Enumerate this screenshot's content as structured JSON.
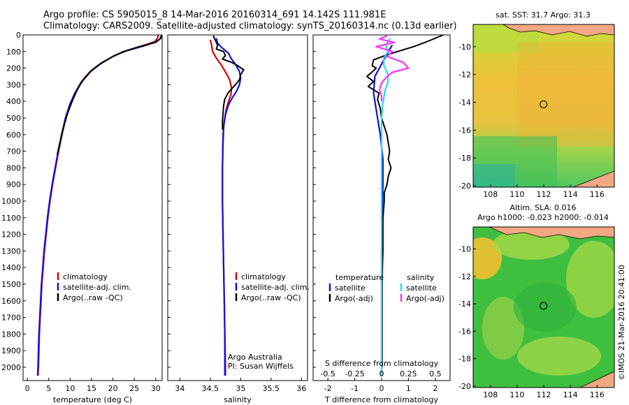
{
  "header": {
    "line1": "Argo profile: CS 5905015_8 14-Mar-2016 20160314_691 14.142S 111.981E",
    "line2": "Climatology: CARS2009. Satellite-adjusted climatology: synTS_20160314.nc (0.13d earlier)"
  },
  "side_text": "©IMOS 21-Mar-2016 20:41:00",
  "colors": {
    "climatology": "#e00000",
    "satellite": "#1010e0",
    "argo": "#000000",
    "s_satellite": "#20e0e8",
    "s_argo": "#ff30ff",
    "land": "#f2a882",
    "coast": "#000000"
  },
  "chart_data": [
    {
      "id": "temperature",
      "type": "line",
      "xlabel": "temperature (deg C)",
      "xlim": [
        -1,
        31.5
      ],
      "ylim": [
        2080,
        0
      ],
      "xticks": [
        "0",
        "5",
        "10",
        "15",
        "20",
        "25",
        "30"
      ],
      "yticks": [
        "0",
        "100",
        "200",
        "300",
        "400",
        "500",
        "600",
        "700",
        "800",
        "900",
        "1000",
        "1100",
        "1200",
        "1300",
        "1400",
        "1500",
        "1600",
        "1700",
        "1800",
        "1900",
        "2000"
      ],
      "legend": [
        "climatology",
        "satellite-adj. clim.",
        "Argo(..raw -QC)"
      ],
      "series": [
        {
          "name": "climatology",
          "color_key": "climatology",
          "points": [
            [
              30.6,
              0
            ],
            [
              30.4,
              20
            ],
            [
              29.8,
              40
            ],
            [
              27.5,
              60
            ],
            [
              25.0,
              80
            ],
            [
              22.5,
              100
            ],
            [
              20.0,
              130
            ],
            [
              17.3,
              170
            ],
            [
              14.8,
              220
            ],
            [
              12.8,
              280
            ],
            [
              11.2,
              350
            ],
            [
              10.0,
              420
            ],
            [
              9.0,
              500
            ],
            [
              8.1,
              600
            ],
            [
              7.3,
              700
            ],
            [
              6.6,
              800
            ],
            [
              5.9,
              900
            ],
            [
              5.3,
              1000
            ],
            [
              4.8,
              1100
            ],
            [
              4.4,
              1200
            ],
            [
              4.0,
              1300
            ],
            [
              3.7,
              1400
            ],
            [
              3.4,
              1500
            ],
            [
              3.2,
              1600
            ],
            [
              3.0,
              1700
            ],
            [
              2.8,
              1800
            ],
            [
              2.7,
              1900
            ],
            [
              2.6,
              2000
            ],
            [
              2.5,
              2050
            ]
          ]
        },
        {
          "name": "satellite-adj. clim.",
          "color_key": "satellite",
          "points": [
            [
              31.5,
              0
            ],
            [
              31.2,
              20
            ],
            [
              30.2,
              40
            ],
            [
              28.0,
              60
            ],
            [
              25.4,
              80
            ],
            [
              22.6,
              100
            ],
            [
              20.0,
              130
            ],
            [
              17.2,
              170
            ],
            [
              14.7,
              220
            ],
            [
              12.7,
              280
            ],
            [
              11.1,
              350
            ],
            [
              9.9,
              420
            ],
            [
              8.9,
              500
            ],
            [
              8.0,
              600
            ],
            [
              7.2,
              700
            ],
            [
              6.5,
              800
            ],
            [
              5.8,
              900
            ],
            [
              5.2,
              1000
            ],
            [
              4.7,
              1100
            ],
            [
              4.3,
              1200
            ],
            [
              3.9,
              1300
            ],
            [
              3.6,
              1400
            ],
            [
              3.3,
              1500
            ],
            [
              3.1,
              1600
            ],
            [
              2.9,
              1700
            ],
            [
              2.7,
              1800
            ],
            [
              2.6,
              1900
            ],
            [
              2.5,
              2000
            ],
            [
              2.4,
              2050
            ]
          ]
        },
        {
          "name": "Argo(..raw -QC)",
          "color_key": "argo",
          "points": [
            [
              31.3,
              5
            ],
            [
              31.0,
              25
            ],
            [
              30.0,
              45
            ],
            [
              27.8,
              60
            ],
            [
              25.6,
              75
            ],
            [
              23.2,
              95
            ],
            [
              20.3,
              125
            ],
            [
              17.6,
              165
            ],
            [
              15.4,
              205
            ],
            [
              13.5,
              255
            ],
            [
              12.3,
              300
            ],
            [
              11.4,
              345
            ],
            [
              10.3,
              410
            ],
            [
              9.3,
              480
            ],
            [
              8.4,
              560
            ],
            [
              7.6,
              650
            ],
            [
              7.0,
              720
            ]
          ]
        }
      ]
    },
    {
      "id": "salinity",
      "type": "line",
      "xlabel": "salinity",
      "xlim": [
        33.8,
        36.1
      ],
      "ylim": [
        2080,
        0
      ],
      "xticks": [
        "34",
        "34.5",
        "35",
        "35.5",
        "36"
      ],
      "legend": [
        "climatology",
        "satellite-adj. clim.",
        "Argo(..raw -QC)"
      ],
      "annotation": [
        "Argo Australia",
        "PI: Susan Wijffels"
      ],
      "series": [
        {
          "name": "climatology",
          "color_key": "climatology",
          "points": [
            [
              34.5,
              30
            ],
            [
              34.52,
              60
            ],
            [
              34.54,
              100
            ],
            [
              34.6,
              140
            ],
            [
              34.68,
              180
            ],
            [
              34.76,
              230
            ],
            [
              34.82,
              270
            ],
            [
              34.85,
              320
            ],
            [
              34.84,
              360
            ],
            [
              34.8,
              400
            ],
            [
              34.76,
              450
            ],
            [
              34.73,
              520
            ],
            [
              34.71,
              600
            ],
            [
              34.7,
              800
            ],
            [
              34.7,
              1000
            ],
            [
              34.71,
              1200
            ],
            [
              34.72,
              1400
            ],
            [
              34.73,
              1600
            ],
            [
              34.74,
              1800
            ],
            [
              34.75,
              2000
            ],
            [
              34.75,
              2050
            ]
          ]
        },
        {
          "name": "satellite-adj. clim.",
          "color_key": "satellite",
          "points": [
            [
              34.6,
              20
            ],
            [
              34.62,
              50
            ],
            [
              34.7,
              80
            ],
            [
              34.8,
              110
            ],
            [
              34.84,
              140
            ],
            [
              34.92,
              180
            ],
            [
              34.98,
              220
            ],
            [
              35.0,
              260
            ],
            [
              34.98,
              300
            ],
            [
              34.93,
              340
            ],
            [
              34.86,
              380
            ],
            [
              34.8,
              420
            ],
            [
              34.75,
              480
            ],
            [
              34.72,
              550
            ],
            [
              34.71,
              650
            ],
            [
              34.7,
              800
            ],
            [
              34.7,
              1000
            ],
            [
              34.71,
              1200
            ],
            [
              34.72,
              1400
            ],
            [
              34.73,
              1600
            ],
            [
              34.74,
              1800
            ],
            [
              34.74,
              2000
            ],
            [
              34.74,
              2050
            ]
          ]
        },
        {
          "name": "Argo(..raw -QC)",
          "color_key": "argo",
          "points": [
            [
              34.55,
              5
            ],
            [
              34.58,
              30
            ],
            [
              34.62,
              60
            ],
            [
              34.6,
              85
            ],
            [
              34.72,
              100
            ],
            [
              34.75,
              125
            ],
            [
              34.7,
              145
            ],
            [
              34.85,
              165
            ],
            [
              34.95,
              185
            ],
            [
              35.05,
              210
            ],
            [
              35.0,
              240
            ],
            [
              34.98,
              270
            ],
            [
              34.9,
              305
            ],
            [
              34.8,
              345
            ],
            [
              34.74,
              385
            ],
            [
              34.72,
              425
            ],
            [
              34.71,
              470
            ],
            [
              34.7,
              520
            ],
            [
              34.7,
              570
            ]
          ]
        }
      ]
    },
    {
      "id": "difference",
      "type": "line",
      "xlabel": "T difference from climatology",
      "xlabel_top": "S difference from climatology",
      "xlim": [
        -2.55,
        2.55
      ],
      "ylim": [
        2080,
        0
      ],
      "xticks": [
        "-2",
        "-1",
        "0",
        "1",
        "2"
      ],
      "xticks_top": [
        "-0.5",
        "-0.25",
        "0",
        "0.25",
        "0.5"
      ],
      "xticks_top_values": [
        -0.5,
        -0.25,
        0,
        0.25,
        0.5
      ],
      "legend_left_title": "temperature",
      "legend_right_title": "salinity",
      "legend_left": [
        "satellite",
        "Argo(-adj)"
      ],
      "legend_right": [
        "satellite",
        "Argo(-adj)"
      ],
      "series": [
        {
          "name": "T satellite",
          "color_key": "satellite",
          "points": [
            [
              0.4,
              60
            ],
            [
              0.25,
              100
            ],
            [
              0.05,
              160
            ],
            [
              -0.25,
              250
            ],
            [
              -0.3,
              350
            ],
            [
              -0.2,
              450
            ],
            [
              -0.05,
              600
            ],
            [
              0.05,
              750
            ],
            [
              0.05,
              900
            ],
            [
              0.02,
              1100
            ],
            [
              0.0,
              1300
            ],
            [
              0.0,
              1500
            ],
            [
              0.0,
              1700
            ],
            [
              0.0,
              1900
            ],
            [
              0.0,
              2050
            ]
          ]
        },
        {
          "name": "T Argo(-adj)",
          "color_key": "argo",
          "points": [
            [
              2.3,
              0
            ],
            [
              1.7,
              40
            ],
            [
              1.2,
              70
            ],
            [
              0.7,
              95
            ],
            [
              0.2,
              120
            ],
            [
              -0.3,
              150
            ],
            [
              -0.35,
              185
            ],
            [
              -0.2,
              200
            ],
            [
              -0.4,
              230
            ],
            [
              -0.55,
              250
            ],
            [
              -0.3,
              280
            ],
            [
              -0.5,
              310
            ],
            [
              -0.1,
              350
            ],
            [
              -0.15,
              390
            ],
            [
              -0.05,
              440
            ],
            [
              0.0,
              500
            ],
            [
              0.1,
              550
            ],
            [
              0.2,
              600
            ],
            [
              0.25,
              650
            ],
            [
              0.3,
              700
            ],
            [
              0.25,
              750
            ],
            [
              0.35,
              800
            ],
            [
              0.25,
              850
            ],
            [
              0.2,
              900
            ],
            [
              0.1,
              950
            ],
            [
              0.1,
              1000
            ],
            [
              0.05,
              1100
            ],
            [
              0.05,
              1200
            ],
            [
              0.05,
              1300
            ],
            [
              0.03,
              1400
            ],
            [
              0.02,
              1500
            ],
            [
              0.02,
              1600
            ],
            [
              0.02,
              1700
            ],
            [
              0.02,
              1800
            ],
            [
              0.02,
              1900
            ],
            [
              0.02,
              2000
            ]
          ]
        },
        {
          "name": "S satellite",
          "color_key": "s_satellite",
          "points": [
            [
              0.08,
              20
            ],
            [
              0.04,
              60
            ],
            [
              0.06,
              100
            ],
            [
              0.02,
              140
            ],
            [
              0.02,
              180
            ],
            [
              0.06,
              240
            ],
            [
              0.06,
              280
            ],
            [
              0.03,
              340
            ],
            [
              0.01,
              420
            ],
            [
              0.0,
              500
            ],
            [
              0.0,
              700
            ],
            [
              0.0,
              900
            ],
            [
              0.0,
              1100
            ],
            [
              0.0,
              1300
            ],
            [
              0.0,
              1500
            ],
            [
              0.0,
              1700
            ],
            [
              0.0,
              1900
            ],
            [
              0.0,
              2050
            ]
          ]
        },
        {
          "name": "S Argo(-adj)",
          "color_key": "s_argo",
          "points": [
            [
              0.05,
              5
            ],
            [
              -0.02,
              25
            ],
            [
              0.12,
              45
            ],
            [
              -0.05,
              70
            ],
            [
              0.1,
              100
            ],
            [
              0.05,
              130
            ],
            [
              0.2,
              165
            ],
            [
              0.25,
              200
            ],
            [
              0.1,
              225
            ],
            [
              0.05,
              250
            ],
            [
              0.0,
              290
            ],
            [
              -0.02,
              330
            ],
            [
              0.0,
              370
            ],
            [
              0.0,
              400
            ]
          ]
        }
      ]
    }
  ],
  "maps": [
    {
      "id": "sst",
      "title_lines": [
        "sat. SST: 31.7 Argo: 31.3"
      ],
      "xticks": [
        "108",
        "110",
        "112",
        "114",
        "116"
      ],
      "yticks": [
        "-10",
        "-12",
        "-14",
        "-16",
        "-18",
        "-20"
      ],
      "xlim": [
        106.7,
        117.3
      ],
      "ylim": [
        -20.1,
        -8.4
      ],
      "argo_position": [
        111.981,
        -14.142
      ]
    },
    {
      "id": "sla",
      "title_lines": [
        "Altim. SLA: 0.016",
        "Argo h1000: -0.023 h2000: -0.014"
      ],
      "xticks": [
        "108",
        "110",
        "112",
        "114",
        "116"
      ],
      "yticks": [
        "-10",
        "-12",
        "-14",
        "-16",
        "-18",
        "-20"
      ],
      "xlim": [
        106.7,
        117.3
      ],
      "ylim": [
        -20.1,
        -8.4
      ],
      "argo_position": [
        111.981,
        -14.142
      ]
    }
  ]
}
